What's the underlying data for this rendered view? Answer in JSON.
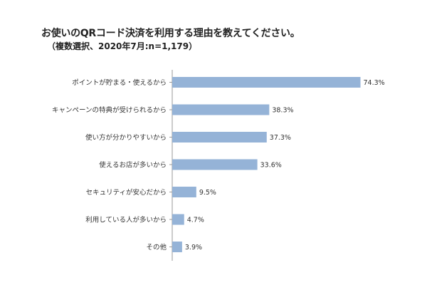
{
  "chart_data": {
    "type": "bar",
    "orientation": "horizontal",
    "title": "お使いのQRコード決済を利用する理由を教えてください。",
    "subtitle": "（複数選択、2020年7月:n=1,179）",
    "categories": [
      "ポイントが貯まる・使えるから",
      "キャンペーンの特典が受けられるから",
      "使い方が分かりやすいから",
      "使えるお店が多いから",
      "セキュリティが安心だから",
      "利用している人が多いから",
      "その他"
    ],
    "values": [
      74.3,
      38.3,
      37.3,
      33.6,
      9.5,
      4.7,
      3.9
    ],
    "value_labels": [
      "74.3%",
      "38.3%",
      "37.3%",
      "33.6%",
      "9.5%",
      "4.7%",
      "3.9%"
    ],
    "unit": "%",
    "xlim": [
      0,
      100
    ],
    "grid": false,
    "legend": "none",
    "bar_color": "#95b3d7",
    "axis_color": "#9a9a9a"
  }
}
